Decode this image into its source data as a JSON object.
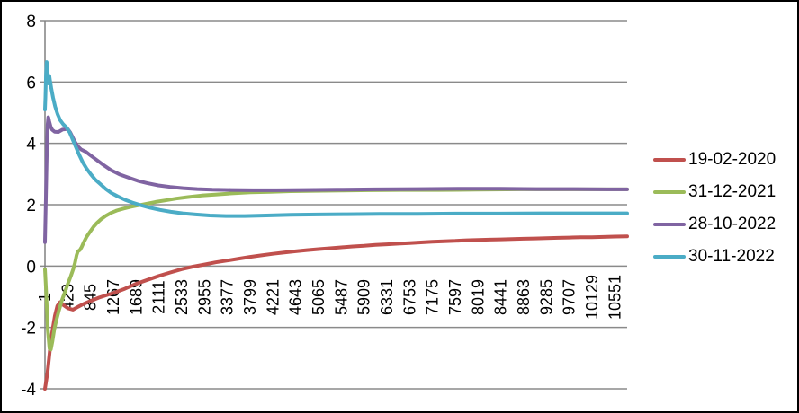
{
  "chart_data": {
    "type": "line",
    "title": "",
    "xlabel": "",
    "ylabel": "",
    "grid": "horizontal",
    "legend_position": "right",
    "background_color": "#FFFFFF",
    "border_color": "#000000",
    "grid_color": "#8A8A8A",
    "axis_color": "#808080",
    "ylim": [
      -4,
      8
    ],
    "xlim": [
      1,
      10780
    ],
    "ytick_labels": [
      "8",
      "6",
      "4",
      "2",
      "0",
      "-2",
      "-4"
    ],
    "xtick_interval": 422,
    "xtick_labels": [
      "1",
      "423",
      "845",
      "1267",
      "1689",
      "2111",
      "2533",
      "2955",
      "3377",
      "3799",
      "4221",
      "4643",
      "5065",
      "5487",
      "5909",
      "6331",
      "6753",
      "7175",
      "7597",
      "8019",
      "8441",
      "8863",
      "9285",
      "9707",
      "10129",
      "10551"
    ],
    "series": [
      {
        "name": "19-02-2020",
        "color": "#C0504D",
        "points": [
          [
            1,
            -4.0
          ],
          [
            50,
            -3.45
          ],
          [
            95,
            -2.7
          ],
          [
            140,
            -2.1
          ],
          [
            185,
            -1.62
          ],
          [
            230,
            -1.3
          ],
          [
            280,
            -1.18
          ],
          [
            350,
            -1.28
          ],
          [
            430,
            -1.38
          ],
          [
            520,
            -1.42
          ],
          [
            610,
            -1.33
          ],
          [
            700,
            -1.25
          ],
          [
            800,
            -1.17
          ],
          [
            900,
            -1.1
          ],
          [
            1000,
            -1.03
          ],
          [
            1120,
            -0.96
          ],
          [
            1267,
            -0.88
          ],
          [
            1480,
            -0.74
          ],
          [
            1689,
            -0.58
          ],
          [
            1900,
            -0.45
          ],
          [
            2111,
            -0.32
          ],
          [
            2320,
            -0.21
          ],
          [
            2533,
            -0.1
          ],
          [
            2740,
            -0.02
          ],
          [
            2955,
            0.05
          ],
          [
            3160,
            0.12
          ],
          [
            3377,
            0.18
          ],
          [
            3590,
            0.24
          ],
          [
            3799,
            0.3
          ],
          [
            4010,
            0.35
          ],
          [
            4221,
            0.4
          ],
          [
            4430,
            0.44
          ],
          [
            4643,
            0.48
          ],
          [
            4850,
            0.52
          ],
          [
            5065,
            0.55
          ],
          [
            5280,
            0.58
          ],
          [
            5487,
            0.61
          ],
          [
            5700,
            0.64
          ],
          [
            5909,
            0.66
          ],
          [
            6120,
            0.69
          ],
          [
            6331,
            0.71
          ],
          [
            6540,
            0.73
          ],
          [
            6753,
            0.75
          ],
          [
            6960,
            0.77
          ],
          [
            7175,
            0.79
          ],
          [
            7390,
            0.81
          ],
          [
            7597,
            0.82
          ],
          [
            7810,
            0.84
          ],
          [
            8019,
            0.85
          ],
          [
            8230,
            0.86
          ],
          [
            8441,
            0.87
          ],
          [
            8650,
            0.88
          ],
          [
            8863,
            0.89
          ],
          [
            9075,
            0.9
          ],
          [
            9285,
            0.91
          ],
          [
            9500,
            0.92
          ],
          [
            9707,
            0.93
          ],
          [
            9920,
            0.94
          ],
          [
            10129,
            0.94
          ],
          [
            10340,
            0.95
          ],
          [
            10551,
            0.96
          ],
          [
            10780,
            0.97
          ]
        ]
      },
      {
        "name": "31-12-2021",
        "color": "#9BBB59",
        "points": [
          [
            1,
            -0.1
          ],
          [
            25,
            -0.9
          ],
          [
            55,
            -2.1
          ],
          [
            85,
            -2.68
          ],
          [
            110,
            -2.72
          ],
          [
            140,
            -2.45
          ],
          [
            175,
            -2.05
          ],
          [
            215,
            -1.75
          ],
          [
            260,
            -1.45
          ],
          [
            315,
            -1.12
          ],
          [
            370,
            -0.85
          ],
          [
            430,
            -0.55
          ],
          [
            480,
            -0.32
          ],
          [
            520,
            -0.12
          ],
          [
            555,
            0.1
          ],
          [
            585,
            0.35
          ],
          [
            610,
            0.48
          ],
          [
            645,
            0.52
          ],
          [
            680,
            0.62
          ],
          [
            720,
            0.78
          ],
          [
            770,
            0.95
          ],
          [
            835,
            1.12
          ],
          [
            900,
            1.28
          ],
          [
            960,
            1.4
          ],
          [
            1035,
            1.52
          ],
          [
            1120,
            1.63
          ],
          [
            1220,
            1.73
          ],
          [
            1330,
            1.81
          ],
          [
            1450,
            1.87
          ],
          [
            1585,
            1.93
          ],
          [
            1730,
            1.98
          ],
          [
            1880,
            2.03
          ],
          [
            2050,
            2.09
          ],
          [
            2230,
            2.14
          ],
          [
            2430,
            2.2
          ],
          [
            2650,
            2.25
          ],
          [
            2900,
            2.3
          ],
          [
            3150,
            2.33
          ],
          [
            3460,
            2.37
          ],
          [
            3800,
            2.4
          ],
          [
            4170,
            2.42
          ],
          [
            4550,
            2.44
          ],
          [
            5000,
            2.45
          ],
          [
            5500,
            2.46
          ],
          [
            6000,
            2.47
          ],
          [
            6600,
            2.48
          ],
          [
            7300,
            2.48
          ],
          [
            8000,
            2.49
          ],
          [
            8800,
            2.5
          ],
          [
            9600,
            2.5
          ],
          [
            10300,
            2.5
          ],
          [
            10780,
            2.5
          ]
        ]
      },
      {
        "name": "28-10-2022",
        "color": "#8064A2",
        "points": [
          [
            1,
            0.78
          ],
          [
            18,
            2.2
          ],
          [
            35,
            3.6
          ],
          [
            50,
            4.6
          ],
          [
            62,
            4.85
          ],
          [
            80,
            4.72
          ],
          [
            105,
            4.55
          ],
          [
            135,
            4.44
          ],
          [
            180,
            4.38
          ],
          [
            250,
            4.37
          ],
          [
            330,
            4.45
          ],
          [
            420,
            4.47
          ],
          [
            470,
            4.35
          ],
          [
            540,
            4.1
          ],
          [
            600,
            3.92
          ],
          [
            670,
            3.8
          ],
          [
            760,
            3.72
          ],
          [
            835,
            3.62
          ],
          [
            950,
            3.47
          ],
          [
            1080,
            3.3
          ],
          [
            1220,
            3.13
          ],
          [
            1380,
            2.99
          ],
          [
            1550,
            2.88
          ],
          [
            1720,
            2.78
          ],
          [
            1900,
            2.7
          ],
          [
            2100,
            2.63
          ],
          [
            2320,
            2.58
          ],
          [
            2560,
            2.54
          ],
          [
            2820,
            2.51
          ],
          [
            3100,
            2.49
          ],
          [
            3450,
            2.48
          ],
          [
            3850,
            2.47
          ],
          [
            4300,
            2.47
          ],
          [
            4800,
            2.48
          ],
          [
            5400,
            2.49
          ],
          [
            6100,
            2.5
          ],
          [
            6900,
            2.51
          ],
          [
            7700,
            2.52
          ],
          [
            8441,
            2.52
          ],
          [
            9100,
            2.51
          ],
          [
            9800,
            2.51
          ],
          [
            10400,
            2.5
          ],
          [
            10780,
            2.5
          ]
        ]
      },
      {
        "name": "30-11-2022",
        "color": "#4BACC6",
        "points": [
          [
            1,
            5.1
          ],
          [
            10,
            5.5
          ],
          [
            20,
            6.2
          ],
          [
            32,
            6.65
          ],
          [
            45,
            6.55
          ],
          [
            58,
            6.1
          ],
          [
            70,
            5.95
          ],
          [
            82,
            6.2
          ],
          [
            95,
            6.05
          ],
          [
            117,
            5.8
          ],
          [
            150,
            5.5
          ],
          [
            190,
            5.2
          ],
          [
            235,
            4.95
          ],
          [
            285,
            4.75
          ],
          [
            340,
            4.62
          ],
          [
            400,
            4.52
          ],
          [
            460,
            4.35
          ],
          [
            520,
            4.1
          ],
          [
            580,
            3.85
          ],
          [
            640,
            3.6
          ],
          [
            700,
            3.38
          ],
          [
            770,
            3.18
          ],
          [
            845,
            3.0
          ],
          [
            930,
            2.82
          ],
          [
            1020,
            2.68
          ],
          [
            1120,
            2.52
          ],
          [
            1230,
            2.38
          ],
          [
            1350,
            2.27
          ],
          [
            1480,
            2.16
          ],
          [
            1620,
            2.07
          ],
          [
            1780,
            1.98
          ],
          [
            1950,
            1.9
          ],
          [
            2130,
            1.83
          ],
          [
            2330,
            1.77
          ],
          [
            2550,
            1.72
          ],
          [
            2790,
            1.68
          ],
          [
            3050,
            1.65
          ],
          [
            3350,
            1.63
          ],
          [
            3700,
            1.63
          ],
          [
            4100,
            1.65
          ],
          [
            4550,
            1.67
          ],
          [
            5050,
            1.68
          ],
          [
            5600,
            1.69
          ],
          [
            6200,
            1.7
          ],
          [
            6900,
            1.7
          ],
          [
            7600,
            1.71
          ],
          [
            8400,
            1.71
          ],
          [
            9200,
            1.72
          ],
          [
            10000,
            1.72
          ],
          [
            10780,
            1.72
          ]
        ]
      }
    ]
  }
}
